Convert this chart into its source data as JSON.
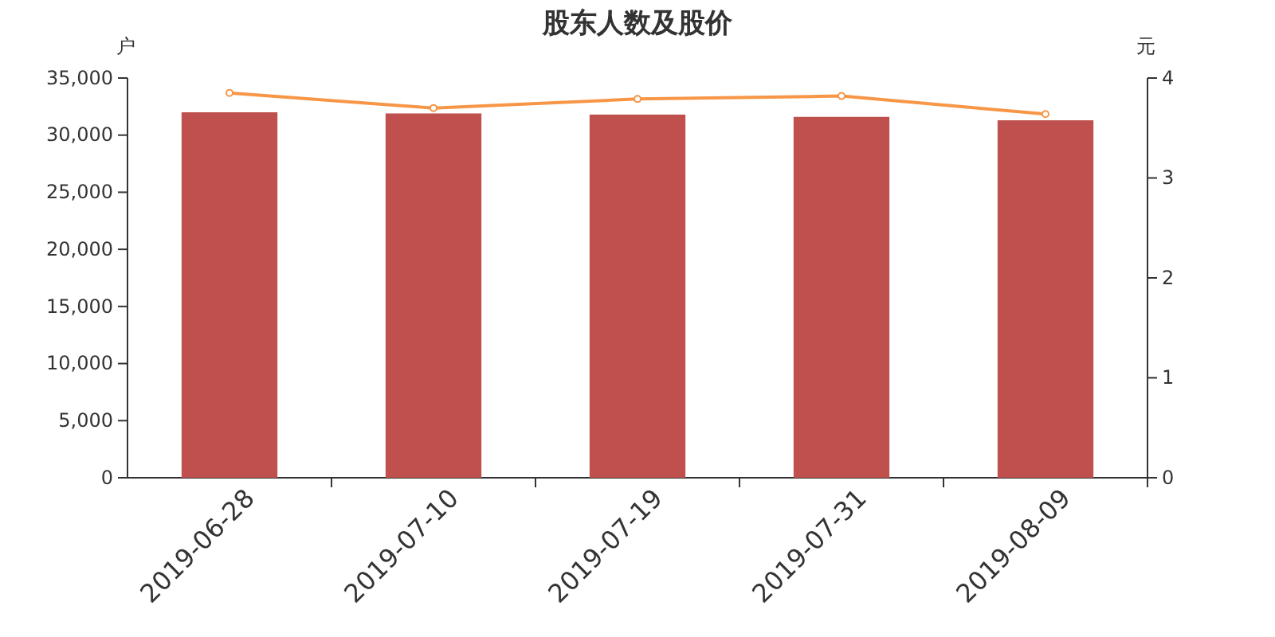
{
  "chart_data": {
    "type": "bar",
    "title": "股东人数及股价",
    "ylabel": "户",
    "y2label": "元",
    "categories": [
      "2019-06-28",
      "2019-07-10",
      "2019-07-19",
      "2019-07-31",
      "2019-08-09"
    ],
    "series": [
      {
        "color": "#c0504d",
        "values": [
          32000,
          31900,
          31800,
          31600,
          31300
        ]
      },
      {
        "type": "line",
        "axis": "y2",
        "color": "#f79646",
        "marker": "circle",
        "values": [
          3.85,
          3.7,
          3.79,
          3.82,
          3.64
        ]
      }
    ],
    "ylim": [
      0,
      35000
    ],
    "yticks": [
      0,
      {
        "value": 5000,
        "label": "5,000"
      },
      {
        "value": 10000,
        "label": "10,000"
      },
      {
        "value": 15000,
        "label": "15,000"
      },
      {
        "value": 20000,
        "label": "20,000"
      },
      {
        "value": 25000,
        "label": "25,000"
      },
      {
        "value": 30000,
        "label": "30,000"
      },
      {
        "value": 35000,
        "label": "35,000"
      }
    ],
    "y2lim": [
      0,
      4
    ],
    "y2ticks": [
      0,
      1,
      2,
      3,
      4
    ],
    "grid": false
  }
}
